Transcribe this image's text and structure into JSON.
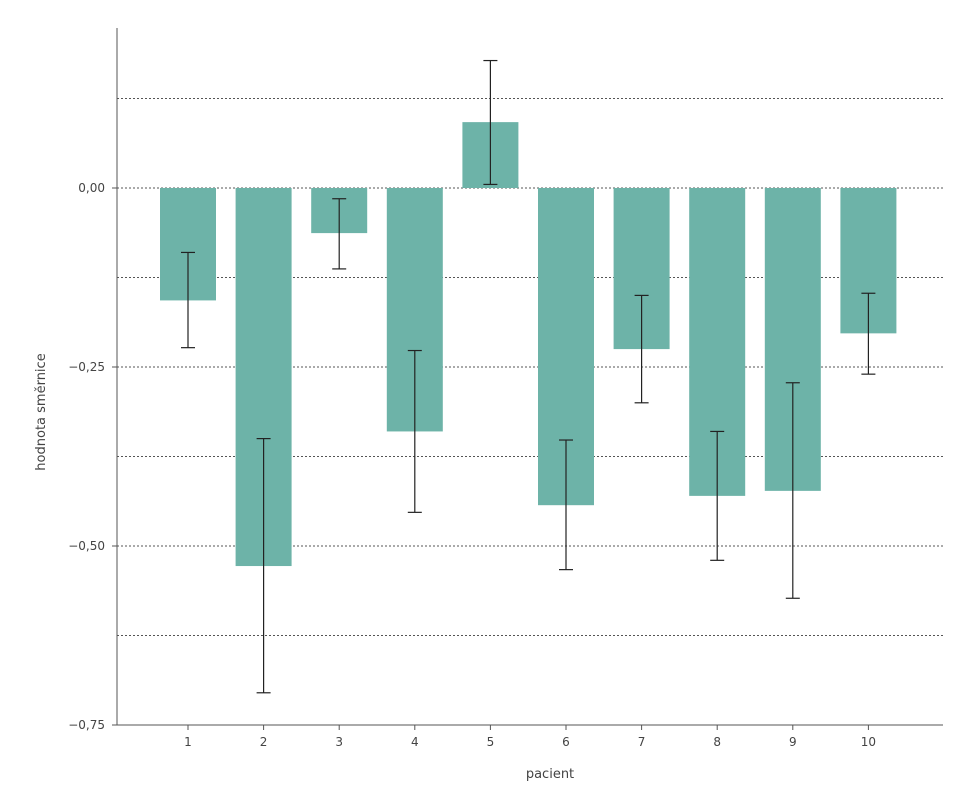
{
  "chart_data": {
    "type": "bar",
    "title": "",
    "xlabel": "pacient",
    "ylabel": "hodnota směrnice",
    "categories": [
      "1",
      "2",
      "3",
      "4",
      "5",
      "6",
      "7",
      "8",
      "9",
      "10"
    ],
    "values": [
      -0.157,
      -0.528,
      -0.063,
      -0.34,
      0.092,
      -0.443,
      -0.225,
      -0.43,
      -0.423,
      -0.203
    ],
    "error_low": [
      -0.223,
      -0.705,
      -0.113,
      -0.453,
      0.005,
      -0.533,
      -0.3,
      -0.52,
      -0.573,
      -0.26
    ],
    "error_high": [
      -0.09,
      -0.35,
      -0.015,
      -0.227,
      0.178,
      -0.352,
      -0.15,
      -0.34,
      -0.272,
      -0.147
    ],
    "ylim": [
      -0.75,
      0.22
    ],
    "ytick_values": [
      0.0,
      -0.25,
      -0.5,
      -0.75
    ],
    "ytick_labels": [
      "0,00",
      "−0,25",
      "−0,50",
      "−0,75"
    ],
    "gridlines": [
      0.125,
      0.0,
      -0.125,
      -0.25,
      -0.375,
      -0.5,
      -0.625
    ],
    "grid": "dotted horizontal",
    "colors": {
      "bar": "#6db3a8",
      "error_bar": "#222222",
      "axis": "#555555",
      "grid": "#555555"
    }
  }
}
